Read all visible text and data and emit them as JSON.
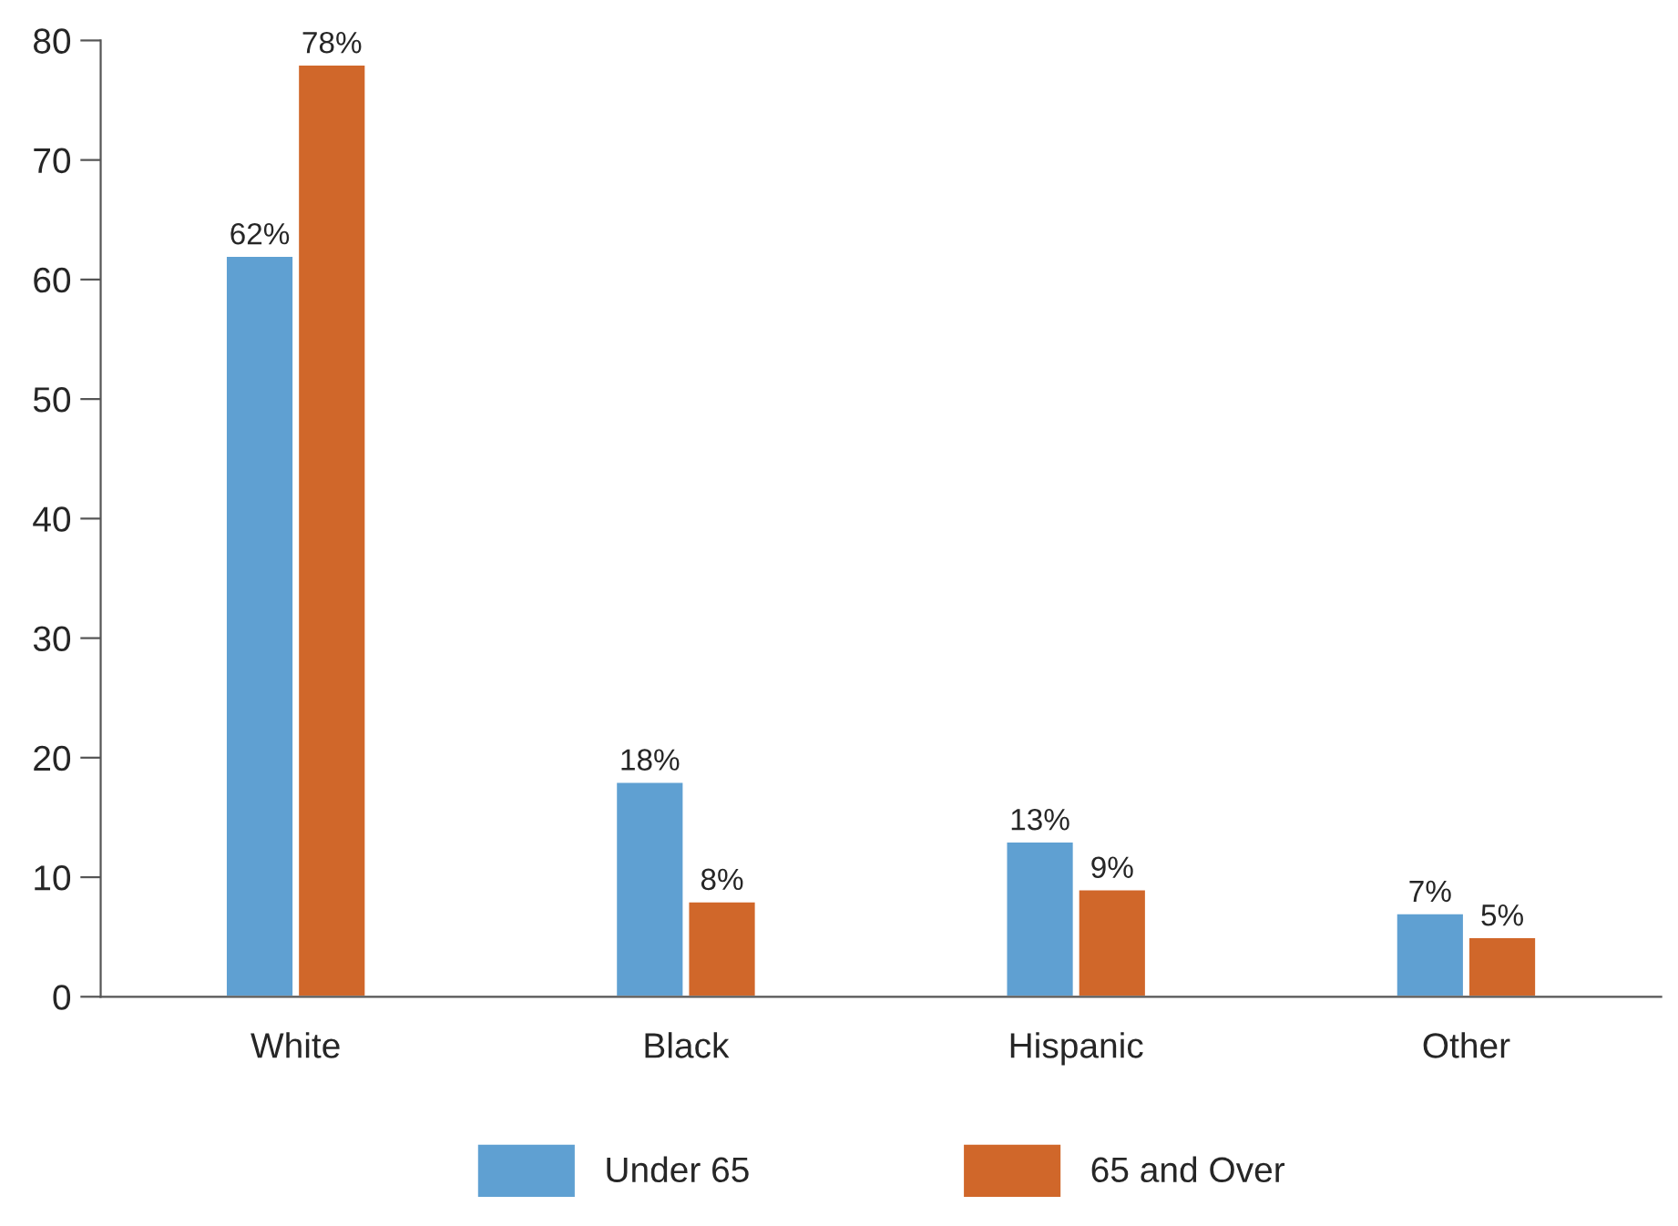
{
  "chart_data": {
    "type": "bar",
    "categories": [
      "White",
      "Black",
      "Hispanic",
      "Other"
    ],
    "series": [
      {
        "name": "Under 65",
        "color": "#5fa0d2",
        "values": [
          62,
          18,
          13,
          7
        ],
        "value_labels": [
          "62%",
          "18%",
          "13%",
          "7%"
        ]
      },
      {
        "name": "65 and Over",
        "color": "#d0672a",
        "values": [
          78,
          8,
          9,
          5
        ],
        "value_labels": [
          "78%",
          "8%",
          "9%",
          "5%"
        ]
      }
    ],
    "ylim": [
      0,
      80
    ],
    "yticks": [
      0,
      10,
      20,
      30,
      40,
      50,
      60,
      70,
      80
    ],
    "grid": false,
    "legend": "bottom"
  }
}
